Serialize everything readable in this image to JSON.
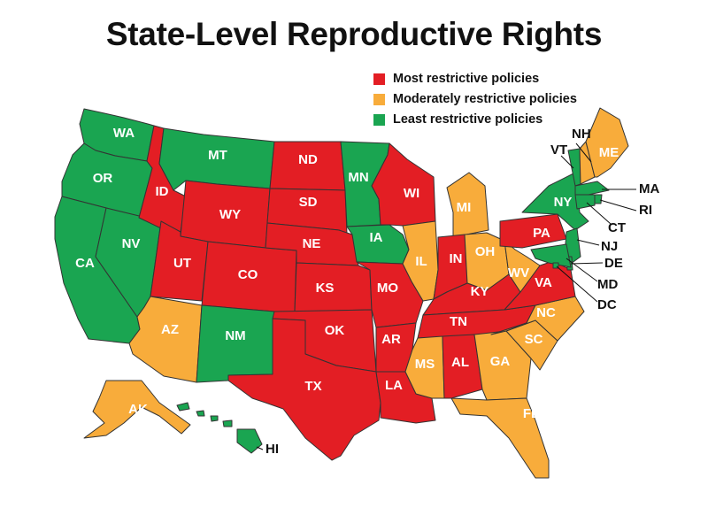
{
  "title": "State-Level Reproductive Rights",
  "colors": {
    "most": "#e31e24",
    "moderate": "#f8ac3b",
    "least": "#1aa551"
  },
  "legend": [
    {
      "category": "most",
      "label": "Most restrictive policies"
    },
    {
      "category": "moderate",
      "label": "Moderately restrictive policies"
    },
    {
      "category": "least",
      "label": "Least restrictive policies"
    }
  ],
  "states": [
    {
      "abbr": "WA",
      "category": "least"
    },
    {
      "abbr": "OR",
      "category": "least"
    },
    {
      "abbr": "CA",
      "category": "least"
    },
    {
      "abbr": "NV",
      "category": "least"
    },
    {
      "abbr": "ID",
      "category": "most"
    },
    {
      "abbr": "MT",
      "category": "least"
    },
    {
      "abbr": "WY",
      "category": "most"
    },
    {
      "abbr": "UT",
      "category": "most"
    },
    {
      "abbr": "CO",
      "category": "most"
    },
    {
      "abbr": "AZ",
      "category": "moderate"
    },
    {
      "abbr": "NM",
      "category": "least"
    },
    {
      "abbr": "ND",
      "category": "most"
    },
    {
      "abbr": "SD",
      "category": "most"
    },
    {
      "abbr": "NE",
      "category": "most"
    },
    {
      "abbr": "KS",
      "category": "most"
    },
    {
      "abbr": "OK",
      "category": "most"
    },
    {
      "abbr": "TX",
      "category": "most"
    },
    {
      "abbr": "MN",
      "category": "least"
    },
    {
      "abbr": "IA",
      "category": "least"
    },
    {
      "abbr": "MO",
      "category": "most"
    },
    {
      "abbr": "AR",
      "category": "most"
    },
    {
      "abbr": "LA",
      "category": "most"
    },
    {
      "abbr": "WI",
      "category": "most"
    },
    {
      "abbr": "IL",
      "category": "moderate"
    },
    {
      "abbr": "MI",
      "category": "moderate"
    },
    {
      "abbr": "IN",
      "category": "most"
    },
    {
      "abbr": "OH",
      "category": "moderate"
    },
    {
      "abbr": "KY",
      "category": "most"
    },
    {
      "abbr": "TN",
      "category": "most"
    },
    {
      "abbr": "MS",
      "category": "moderate"
    },
    {
      "abbr": "AL",
      "category": "most"
    },
    {
      "abbr": "GA",
      "category": "moderate"
    },
    {
      "abbr": "FL",
      "category": "moderate"
    },
    {
      "abbr": "SC",
      "category": "moderate"
    },
    {
      "abbr": "NC",
      "category": "moderate"
    },
    {
      "abbr": "VA",
      "category": "most"
    },
    {
      "abbr": "WV",
      "category": "moderate"
    },
    {
      "abbr": "PA",
      "category": "most"
    },
    {
      "abbr": "NY",
      "category": "least"
    },
    {
      "abbr": "VT",
      "category": "least"
    },
    {
      "abbr": "NH",
      "category": "moderate"
    },
    {
      "abbr": "ME",
      "category": "moderate"
    },
    {
      "abbr": "MA",
      "category": "least"
    },
    {
      "abbr": "RI",
      "category": "least"
    },
    {
      "abbr": "CT",
      "category": "least"
    },
    {
      "abbr": "NJ",
      "category": "least"
    },
    {
      "abbr": "DE",
      "category": "least"
    },
    {
      "abbr": "MD",
      "category": "least"
    },
    {
      "abbr": "DC",
      "category": "least"
    },
    {
      "abbr": "AK",
      "category": "moderate"
    },
    {
      "abbr": "HI",
      "category": "least"
    }
  ]
}
